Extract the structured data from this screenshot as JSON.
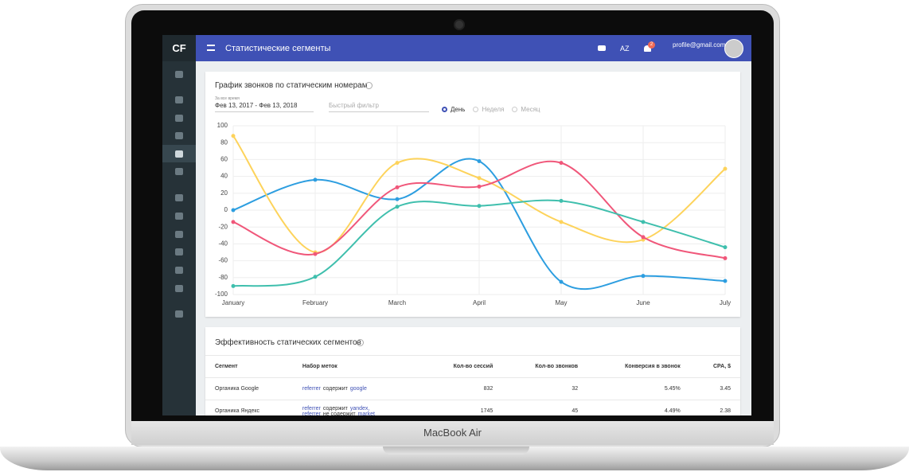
{
  "device": {
    "label": "MacBook Air"
  },
  "app": {
    "logo": "CF",
    "title": "Статистические сегменты",
    "sort_button": "AZ",
    "notifications": "2",
    "user": "profile@gmail.com"
  },
  "chart_card": {
    "title": "График звонков по статическим номерам",
    "date_caption": "За все время",
    "date_range": "Фев 13, 2017 - Фев 13, 2018",
    "filter_placeholder": "Быстрый фильтр",
    "periods": [
      "День",
      "Неделя",
      "Месяц"
    ],
    "selected_period": 0
  },
  "chart_data": {
    "type": "line",
    "smooth": true,
    "grid": true,
    "categories": [
      "January",
      "February",
      "March",
      "April",
      "May",
      "June",
      "July"
    ],
    "ylim": [
      -100,
      100
    ],
    "yticks": [
      -100,
      -80,
      -60,
      -40,
      -20,
      0,
      20,
      40,
      60,
      80,
      100
    ],
    "series": [
      {
        "color": "#2d9ee0",
        "values": [
          0,
          36,
          13,
          58,
          -85,
          -78,
          -84
        ]
      },
      {
        "color": "#fdd35b",
        "values": [
          88,
          -50,
          56,
          38,
          -14,
          -35,
          49
        ]
      },
      {
        "color": "#f0577a",
        "values": [
          -14,
          -52,
          27,
          28,
          56,
          -32,
          -57
        ]
      },
      {
        "color": "#3fbfad",
        "values": [
          -90,
          -79,
          4,
          5,
          11,
          -14,
          -44
        ]
      }
    ]
  },
  "table": {
    "title": "Эффективность статических сегментов",
    "columns": [
      "Сегмент",
      "Набор меток",
      "Кол-во сессий",
      "Кол-во звонков",
      "Конверсия в звонок",
      "CPA, $"
    ],
    "rows": [
      {
        "segment": "Органика Google",
        "rules": [
          [
            "referrer",
            "содержит",
            "google"
          ]
        ],
        "cells": [
          "832",
          "32",
          "5.45%",
          "3.45"
        ]
      },
      {
        "segment": "Органика Яндекс",
        "rules": [
          [
            "referrer",
            "содержит",
            "yandex,"
          ],
          [
            "referrer",
            "не содержит",
            "market"
          ]
        ],
        "cells": [
          "1745",
          "45",
          "4.49%",
          "2.38"
        ]
      }
    ]
  }
}
